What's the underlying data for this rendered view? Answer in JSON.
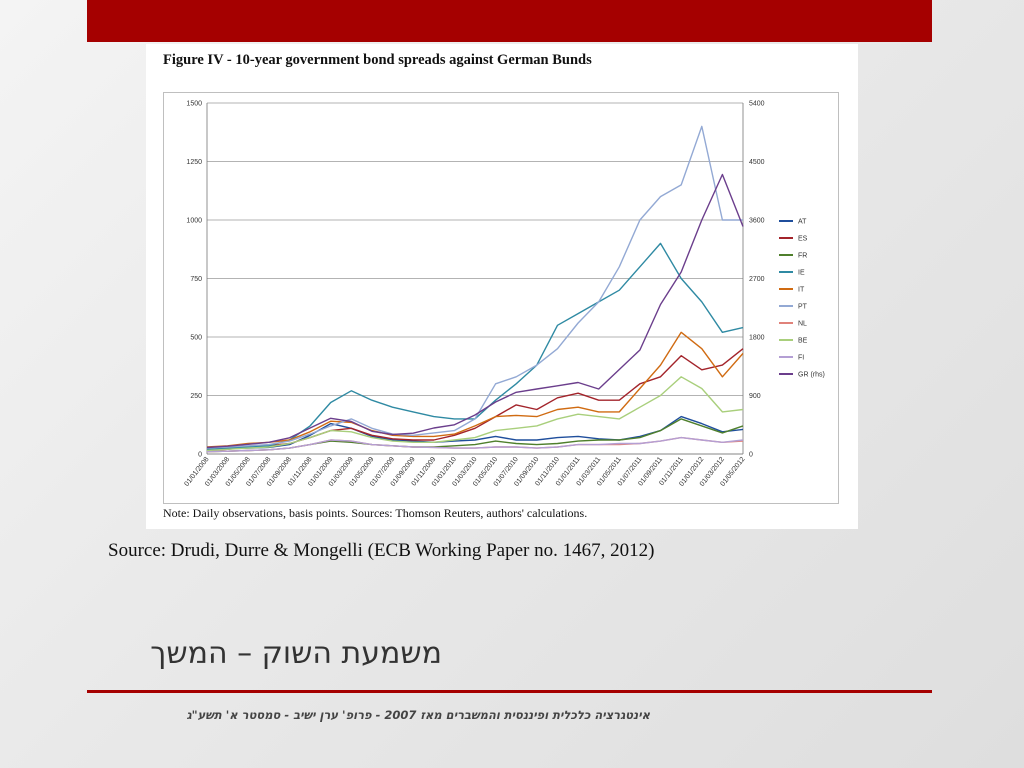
{
  "slide": {
    "title": "משמעת השוק – המשך",
    "source": "Source: Drudi, Durre & Mongelli (ECB Working Paper no. 1467, 2012)",
    "footer": "אינטגרציה כלכלית ופיננסית והמשברים מאז 2007 - פרופ' ערן ישיב - סמסטר א' תשע\"ג",
    "accent_color": "#a50000"
  },
  "chart_data": {
    "type": "line",
    "title": "Figure IV - 10-year government bond spreads against German Bunds",
    "note": "Note: Daily observations, basis points. Sources: Thomson Reuters, authors' calculations.",
    "ylim": [
      0,
      1500
    ],
    "y2lim": [
      0,
      5400
    ],
    "yticks": [
      0,
      250,
      500,
      750,
      1000,
      1250,
      1500
    ],
    "y2ticks": [
      0,
      900,
      1800,
      2700,
      3600,
      4500,
      5400
    ],
    "grid": true,
    "legend_position": "right",
    "x": [
      "01/01/2008",
      "01/03/2008",
      "01/05/2008",
      "01/07/2008",
      "01/09/2008",
      "01/11/2008",
      "01/01/2009",
      "01/03/2009",
      "01/05/2009",
      "01/07/2009",
      "01/09/2009",
      "01/11/2009",
      "01/01/2010",
      "01/03/2010",
      "01/05/2010",
      "01/07/2010",
      "01/09/2010",
      "01/11/2010",
      "01/01/2011",
      "01/03/2011",
      "01/05/2011",
      "01/07/2011",
      "01/09/2011",
      "01/11/2011",
      "01/01/2012",
      "01/03/2012",
      "01/05/2012"
    ],
    "series": [
      {
        "name": "AT",
        "color": "#1f4e9c",
        "axis": "left",
        "values": [
          20,
          22,
          25,
          28,
          40,
          80,
          130,
          110,
          75,
          60,
          55,
          50,
          55,
          60,
          75,
          60,
          60,
          70,
          75,
          65,
          60,
          75,
          100,
          160,
          130,
          95,
          105
        ]
      },
      {
        "name": "ES",
        "color": "#a3242b",
        "axis": "left",
        "values": [
          15,
          20,
          30,
          35,
          45,
          70,
          100,
          110,
          80,
          65,
          60,
          60,
          80,
          110,
          160,
          210,
          190,
          240,
          260,
          230,
          230,
          300,
          330,
          420,
          360,
          380,
          450
        ]
      },
      {
        "name": "FR",
        "color": "#4f7f2c",
        "axis": "left",
        "values": [
          10,
          12,
          15,
          18,
          25,
          40,
          55,
          50,
          40,
          35,
          30,
          30,
          35,
          40,
          55,
          45,
          40,
          45,
          55,
          60,
          60,
          70,
          100,
          150,
          120,
          90,
          120
        ]
      },
      {
        "name": "IE",
        "color": "#2f8aa3",
        "axis": "left",
        "values": [
          20,
          25,
          30,
          35,
          60,
          120,
          220,
          270,
          230,
          200,
          180,
          160,
          150,
          150,
          230,
          300,
          380,
          550,
          600,
          650,
          700,
          800,
          900,
          750,
          650,
          520,
          540
        ]
      },
      {
        "name": "IT",
        "color": "#d06b12",
        "axis": "left",
        "values": [
          30,
          35,
          45,
          50,
          60,
          95,
          140,
          135,
          100,
          80,
          75,
          75,
          85,
          120,
          160,
          165,
          160,
          190,
          200,
          180,
          180,
          280,
          380,
          520,
          450,
          330,
          430
        ]
      },
      {
        "name": "PT",
        "color": "#93a9d4",
        "axis": "left",
        "values": [
          25,
          30,
          35,
          40,
          55,
          85,
          120,
          150,
          110,
          85,
          80,
          90,
          100,
          150,
          300,
          330,
          380,
          450,
          560,
          650,
          800,
          1000,
          1100,
          1150,
          1400,
          1000,
          1000
        ]
      },
      {
        "name": "NL",
        "color": "#e0827a",
        "axis": "left",
        "values": [
          10,
          12,
          15,
          18,
          25,
          40,
          60,
          55,
          40,
          35,
          30,
          28,
          25,
          25,
          30,
          30,
          25,
          30,
          40,
          40,
          40,
          45,
          55,
          70,
          60,
          50,
          55
        ]
      },
      {
        "name": "BE",
        "color": "#a9cf7c",
        "axis": "left",
        "values": [
          15,
          20,
          25,
          30,
          45,
          70,
          100,
          95,
          70,
          55,
          50,
          50,
          60,
          70,
          100,
          110,
          120,
          150,
          170,
          160,
          150,
          200,
          250,
          330,
          280,
          180,
          190
        ]
      },
      {
        "name": "FI",
        "color": "#b49fd4",
        "axis": "left",
        "values": [
          10,
          12,
          15,
          18,
          25,
          40,
          60,
          55,
          40,
          35,
          30,
          28,
          25,
          25,
          30,
          30,
          25,
          30,
          40,
          40,
          45,
          45,
          55,
          70,
          60,
          50,
          60
        ]
      },
      {
        "name": "GR (rhs)",
        "color": "#6b3e8c",
        "axis": "right",
        "values": [
          100,
          120,
          150,
          180,
          250,
          400,
          550,
          500,
          350,
          300,
          320,
          400,
          450,
          600,
          800,
          950,
          1000,
          1050,
          1100,
          1000,
          1300,
          1600,
          2300,
          2800,
          3600,
          4300,
          3500
        ]
      }
    ]
  }
}
